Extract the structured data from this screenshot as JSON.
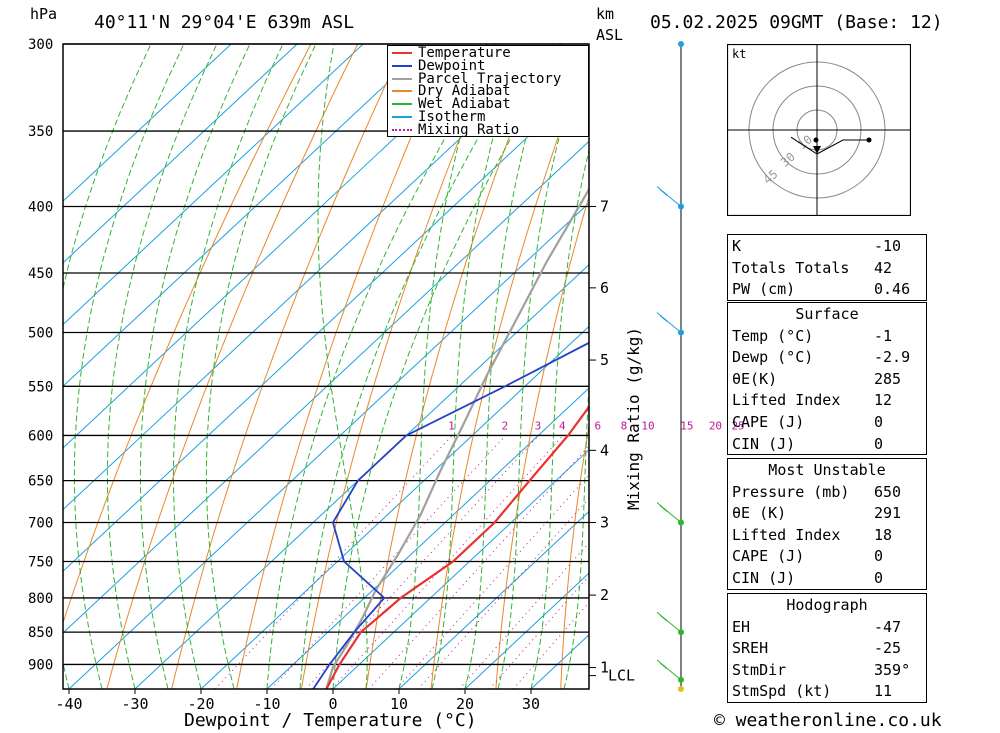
{
  "header": {
    "pressure_unit": "hPa",
    "location": "40°11'N 29°04'E 639m ASL",
    "km_unit": "km",
    "asl_unit": "ASL",
    "datetime": "05.02.2025 09GMT (Base: 12)"
  },
  "footer": {
    "credit": "© weatheronline.co.uk"
  },
  "chart_data": {
    "type": "line",
    "title": "",
    "xlabel": "Dewpoint / Temperature (°C)",
    "ylabel": "hPa",
    "secondary_ylabel": "Mixing Ratio (g/kg)",
    "xlim": [
      -40,
      39
    ],
    "ylim": [
      940,
      300
    ],
    "y_scale": "log",
    "x_ticks": [
      "-40",
      "-30",
      "-20",
      "-10",
      "0",
      "10",
      "20",
      "30"
    ],
    "pressure_ticks": [
      "300",
      "350",
      "400",
      "450",
      "500",
      "550",
      "600",
      "650",
      "700",
      "750",
      "800",
      "850",
      "900"
    ],
    "km_ticks": [
      {
        "label": "7",
        "p": 400
      },
      {
        "label": "6",
        "p": 462
      },
      {
        "label": "5",
        "p": 525
      },
      {
        "label": "4",
        "p": 616
      },
      {
        "label": "3",
        "p": 700
      },
      {
        "label": "2",
        "p": 796
      },
      {
        "label": "1",
        "p": 905
      },
      {
        "label": "LCL",
        "p": 918
      }
    ],
    "mixing_ratio_labels": [
      "1",
      "2",
      "3",
      "4",
      "6",
      "8",
      "10",
      "15",
      "20",
      "25"
    ],
    "mixing_ratio_values": [
      1,
      2,
      3,
      4,
      6,
      8,
      10,
      15,
      20,
      25
    ],
    "legend": [
      "Temperature",
      "Dewpoint",
      "Parcel Trajectory",
      "Dry Adiabat",
      "Wet Adiabat",
      "Isotherm",
      "Mixing Ratio"
    ],
    "legend_position": "top-right",
    "colors": {
      "temperature": "#e8322d",
      "dewpoint": "#2341c8",
      "parcel": "#a0a0a0",
      "dry_adiabat": "#e8882a",
      "wet_adiabat": "#2fb52f",
      "isotherm": "#1ca0e0",
      "mixing_ratio": "#c0189c"
    },
    "series": [
      {
        "name": "Temperature",
        "points": [
          [
            -1,
            940
          ],
          [
            -3,
            900
          ],
          [
            -5,
            850
          ],
          [
            -4.5,
            800
          ],
          [
            -2.5,
            750
          ],
          [
            -2.5,
            700
          ],
          [
            -4,
            650
          ],
          [
            -5.5,
            600
          ],
          [
            -8,
            550
          ],
          [
            -11,
            500
          ],
          [
            -14,
            450
          ],
          [
            -16,
            400
          ],
          [
            -16.5,
            350
          ],
          [
            -14,
            300
          ]
        ]
      },
      {
        "name": "Dewpoint",
        "points": [
          [
            -3,
            940
          ],
          [
            -4.5,
            900
          ],
          [
            -6,
            850
          ],
          [
            -7,
            800
          ],
          [
            -19,
            750
          ],
          [
            -27,
            700
          ],
          [
            -30,
            650
          ],
          [
            -30,
            600
          ],
          [
            -23,
            550
          ],
          [
            -16,
            500
          ],
          [
            -14,
            450
          ],
          [
            -21,
            400
          ],
          [
            -38,
            350
          ],
          [
            -36,
            300
          ]
        ]
      },
      {
        "name": "Parcel Trajectory",
        "points": [
          [
            -1,
            940
          ],
          [
            -3.5,
            905
          ],
          [
            -5,
            870
          ],
          [
            -7,
            830
          ],
          [
            -9.5,
            790
          ],
          [
            -12,
            740
          ],
          [
            -15,
            690
          ],
          [
            -19,
            640
          ],
          [
            -23,
            590
          ],
          [
            -27.5,
            540
          ],
          [
            -32,
            490
          ],
          [
            -37,
            440
          ],
          [
            -42,
            390
          ],
          [
            -47,
            350
          ],
          [
            -52,
            310
          ]
        ]
      }
    ]
  },
  "hodograph": {
    "unit_label": "kt",
    "ring_labels": [
      "10",
      "30",
      "45"
    ],
    "points": [
      [
        -0.5,
        0.2
      ],
      [
        0,
        -1
      ],
      [
        0.5,
        0
      ],
      [
        1,
        0
      ]
    ]
  },
  "winds": [
    {
      "p": 300,
      "color": "#1ca0e0"
    },
    {
      "p": 400,
      "color": "#1ca0e0"
    },
    {
      "p": 500,
      "color": "#1ca0e0"
    },
    {
      "p": 700,
      "color": "#2fb52f"
    },
    {
      "p": 850,
      "color": "#2fb52f"
    },
    {
      "p": 925,
      "color": "#2fb52f"
    },
    {
      "p": 940,
      "color": "#e0c020"
    }
  ],
  "indices": {
    "k": {
      "label": "K",
      "value": "-10"
    },
    "tt": {
      "label": "Totals Totals",
      "value": "42"
    },
    "pw": {
      "label": "PW (cm)",
      "value": "0.46"
    }
  },
  "surface": {
    "title": "Surface",
    "rows": [
      {
        "label": "Temp (°C)",
        "value": "-1"
      },
      {
        "label": "Dewp (°C)",
        "value": "-2.9"
      },
      {
        "label": "θE(K)",
        "value": "285"
      },
      {
        "label": "Lifted Index",
        "value": "12"
      },
      {
        "label": "CAPE (J)",
        "value": "0"
      },
      {
        "label": "CIN (J)",
        "value": "0"
      }
    ]
  },
  "most_unstable": {
    "title": "Most Unstable",
    "rows": [
      {
        "label": "Pressure (mb)",
        "value": "650"
      },
      {
        "label": "θE (K)",
        "value": "291"
      },
      {
        "label": "Lifted Index",
        "value": "18"
      },
      {
        "label": "CAPE (J)",
        "value": "0"
      },
      {
        "label": "CIN (J)",
        "value": "0"
      }
    ]
  },
  "hodograph_table": {
    "title": "Hodograph",
    "rows": [
      {
        "label": "EH",
        "value": "-47"
      },
      {
        "label": "SREH",
        "value": "-25"
      },
      {
        "label": "StmDir",
        "value": "359°"
      },
      {
        "label": "StmSpd (kt)",
        "value": "11"
      }
    ]
  }
}
